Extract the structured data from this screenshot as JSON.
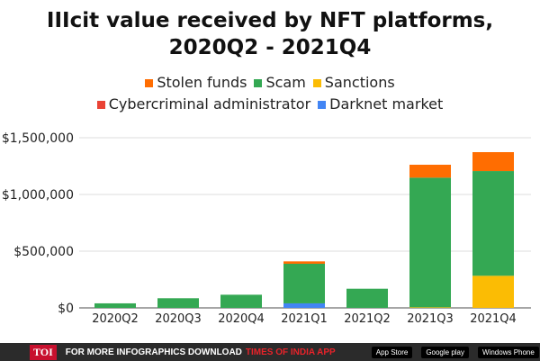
{
  "chart_data": {
    "type": "bar",
    "stacked": true,
    "title": "IIIcit value received by NFT platforms, 2020Q2 - 2021Q4",
    "categories": [
      "2020Q2",
      "2020Q3",
      "2020Q4",
      "2021Q1",
      "2021Q2",
      "2021Q3",
      "2021Q4"
    ],
    "series": [
      {
        "name": "Darknet market",
        "color": "#4285f4",
        "values": [
          0,
          0,
          0,
          40000,
          0,
          0,
          0
        ]
      },
      {
        "name": "Cybercriminal administrator",
        "color": "#ea4335",
        "values": [
          0,
          0,
          0,
          0,
          0,
          0,
          0
        ]
      },
      {
        "name": "Sanctions",
        "color": "#fbbc04",
        "values": [
          0,
          0,
          0,
          0,
          0,
          5000,
          283000
        ]
      },
      {
        "name": "Scam",
        "color": "#34a853",
        "values": [
          40000,
          85000,
          116000,
          349000,
          169000,
          1143000,
          923000
        ]
      },
      {
        "name": "Stolen funds",
        "color": "#ff6d01",
        "values": [
          0,
          0,
          0,
          21000,
          0,
          114000,
          167000
        ]
      }
    ],
    "legend_order": [
      4,
      3,
      2,
      1,
      0
    ],
    "yticks": [
      0,
      500000,
      1000000,
      1500000
    ],
    "ytick_labels": [
      "$0",
      "$500,000",
      "$1,000,000",
      "$1,500,000"
    ],
    "ylim": [
      0,
      1500000
    ],
    "grid": true,
    "legend_position": "top"
  },
  "footer": {
    "brand": "TOI",
    "text": "FOR MORE  INFOGRAPHICS DOWNLOAD",
    "app": "TIMES OF INDIA  APP",
    "badges": [
      "App Store",
      "Google play",
      "Windows Phone"
    ]
  }
}
